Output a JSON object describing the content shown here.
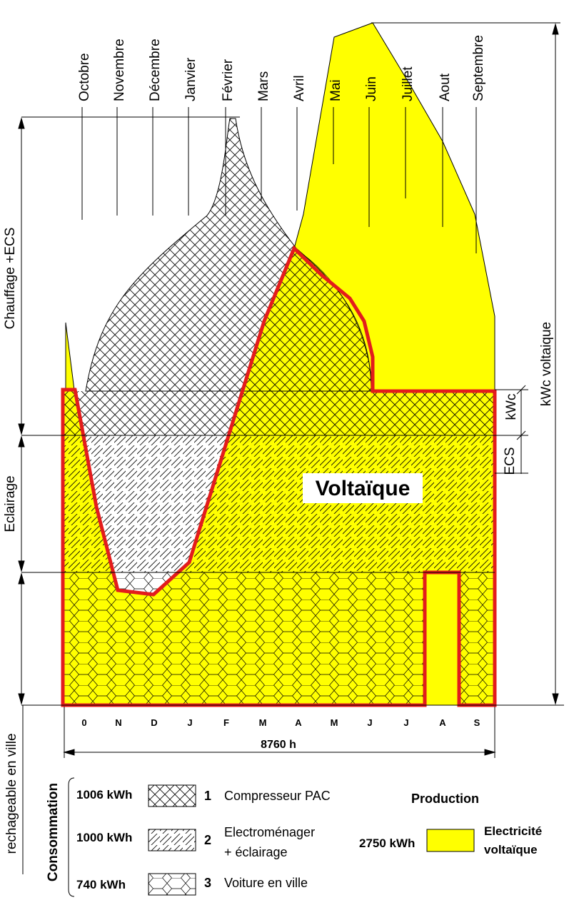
{
  "months_top": [
    "Octobre",
    "Novembre",
    "Décembre",
    "Janvier",
    "Février",
    "Mars",
    "Avril",
    "Mai",
    "Juin",
    "Juillet",
    "Aout",
    "Septembre"
  ],
  "months_bottom": [
    "0",
    "N",
    "D",
    "J",
    "F",
    "M",
    "A",
    "M",
    "J",
    "J",
    "A",
    "S"
  ],
  "duration_label": "8760 h",
  "left_labels": {
    "heating": "Chauffage +ECS",
    "lighting": "Eclairage",
    "recharge": "rechageable en ville",
    "consumption": "Consommation"
  },
  "right_labels": {
    "kwc": "kWc  voltaique",
    "kwc_small": "kWc",
    "ecs": "ECS"
  },
  "center_label": "Voltaïque",
  "legend": {
    "items": [
      {
        "kwh": "1006 kWh",
        "num": "1",
        "label": "Compresseur PAC"
      },
      {
        "kwh": "1000 kWh",
        "num": "2",
        "label": "Electroménager",
        "label2": "+ éclairage"
      },
      {
        "kwh": "740 kWh",
        "num": "3",
        "label": "Voiture en ville"
      }
    ],
    "production_title": "Production",
    "production_kwh": "2750 kWh",
    "production_label": "Electricité",
    "production_label2": "voltaïque"
  },
  "colors": {
    "pv_yellow": "#ffff00",
    "outline_red": "#e31c1c",
    "line": "#000000"
  }
}
